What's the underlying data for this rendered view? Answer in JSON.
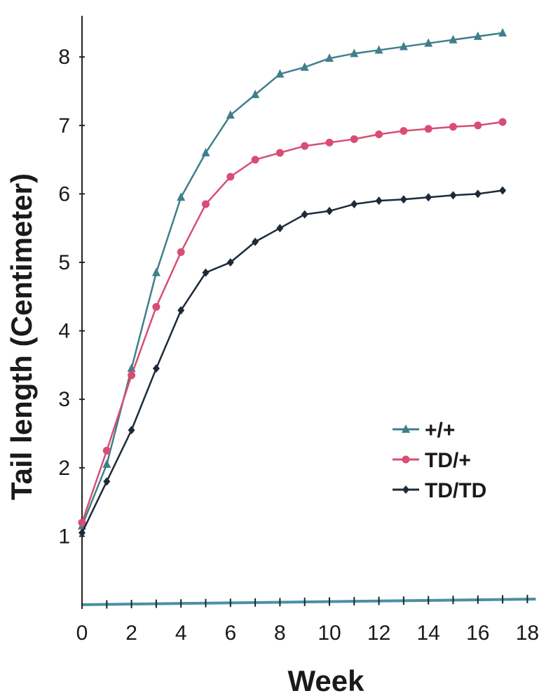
{
  "chart_data": {
    "type": "line",
    "title": "",
    "xlabel": "Week",
    "ylabel": "Tail length (Centimeter)",
    "xlim": [
      0,
      18
    ],
    "ylim": [
      0,
      8.6
    ],
    "xticks": [
      "0",
      "2",
      "4",
      "6",
      "8",
      "10",
      "12",
      "14",
      "16",
      "18"
    ],
    "yticks": [
      "1",
      "2",
      "3",
      "4",
      "5",
      "6",
      "7",
      "8"
    ],
    "grid": false,
    "legend_position": "right",
    "x": [
      0,
      1,
      2,
      3,
      4,
      5,
      6,
      7,
      8,
      9,
      10,
      11,
      12,
      13,
      14,
      15,
      16,
      17
    ],
    "series": [
      {
        "name": "+/+",
        "marker": "triangle",
        "color": "#3f7f8c",
        "values": [
          1.15,
          2.05,
          3.45,
          4.85,
          5.95,
          6.6,
          7.15,
          7.45,
          7.75,
          7.85,
          7.98,
          8.05,
          8.1,
          8.15,
          8.2,
          8.25,
          8.3,
          8.35
        ]
      },
      {
        "name": "TD/+",
        "marker": "circle",
        "color": "#d94d75",
        "values": [
          1.2,
          2.25,
          3.35,
          4.35,
          5.15,
          5.85,
          6.25,
          6.5,
          6.6,
          6.7,
          6.75,
          6.8,
          6.87,
          6.92,
          6.95,
          6.98,
          7.0,
          7.05
        ]
      },
      {
        "name": "TD/TD",
        "marker": "diamond",
        "color": "#1c2a3a",
        "values": [
          1.05,
          1.8,
          2.55,
          3.45,
          4.3,
          4.85,
          5.0,
          5.3,
          5.5,
          5.7,
          5.75,
          5.85,
          5.9,
          5.92,
          5.95,
          5.98,
          6.0,
          6.05
        ]
      }
    ]
  }
}
